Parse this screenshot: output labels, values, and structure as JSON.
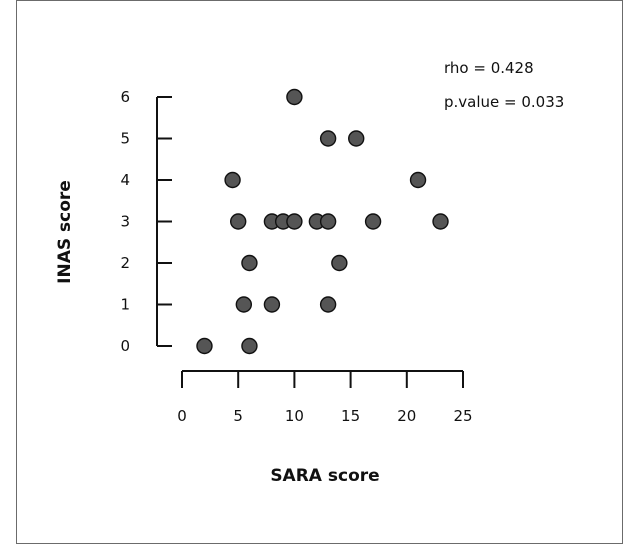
{
  "chart_data": {
    "type": "scatter",
    "title": "",
    "xlabel": "SARA score",
    "ylabel": "INAS score",
    "xlim": [
      0,
      25
    ],
    "ylim": [
      0,
      6
    ],
    "xticks": [
      0,
      5,
      10,
      15,
      20,
      25
    ],
    "yticks": [
      0,
      1,
      2,
      3,
      4,
      5,
      6
    ],
    "grid": false,
    "legend": "none",
    "marker_color": "#555555",
    "annotations": [
      "rho = 0.428",
      "p.value = 0.033"
    ],
    "series": [
      {
        "points": [
          {
            "x": 2,
            "y": 0
          },
          {
            "x": 6,
            "y": 0
          },
          {
            "x": 5.5,
            "y": 1
          },
          {
            "x": 8,
            "y": 1
          },
          {
            "x": 13,
            "y": 1
          },
          {
            "x": 6,
            "y": 2
          },
          {
            "x": 14,
            "y": 2
          },
          {
            "x": 5,
            "y": 3
          },
          {
            "x": 8,
            "y": 3
          },
          {
            "x": 9,
            "y": 3
          },
          {
            "x": 10,
            "y": 3
          },
          {
            "x": 12,
            "y": 3
          },
          {
            "x": 13,
            "y": 3
          },
          {
            "x": 17,
            "y": 3
          },
          {
            "x": 23,
            "y": 3
          },
          {
            "x": 4.5,
            "y": 4
          },
          {
            "x": 21,
            "y": 4
          },
          {
            "x": 13,
            "y": 5
          },
          {
            "x": 15.5,
            "y": 5
          },
          {
            "x": 10,
            "y": 6
          }
        ]
      }
    ]
  }
}
